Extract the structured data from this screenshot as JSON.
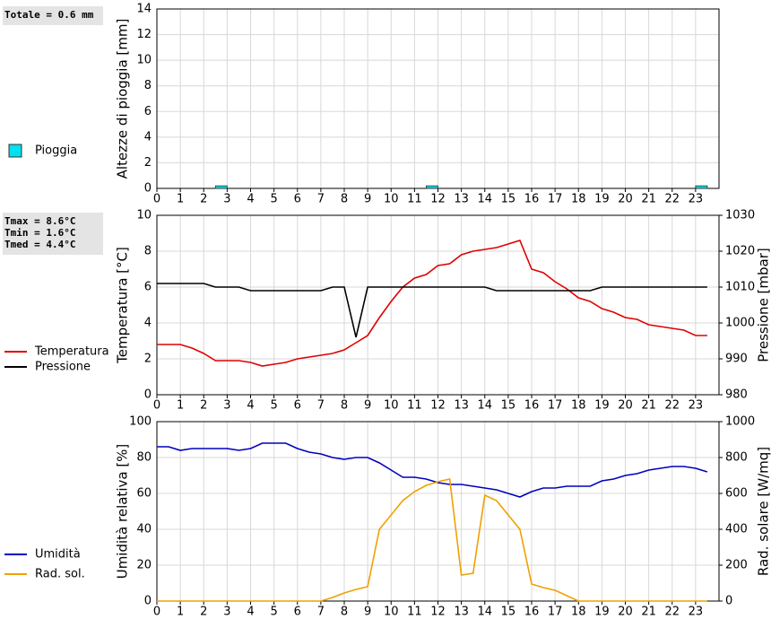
{
  "chart_data": [
    {
      "type": "bar",
      "ylabel": "Altezze di pioggia [mm]",
      "annotations": [
        "Totale = 0.6 mm"
      ],
      "x": [
        2.75,
        11.75,
        23.25
      ],
      "series": [
        {
          "name": "Pioggia",
          "color": "#00e0ee",
          "values": [
            0.2,
            0.2,
            0.2
          ]
        }
      ],
      "xlim": [
        0,
        24
      ],
      "xticks": [
        0,
        1,
        2,
        3,
        4,
        5,
        6,
        7,
        8,
        9,
        10,
        11,
        12,
        13,
        14,
        15,
        16,
        17,
        18,
        19,
        20,
        21,
        22,
        23
      ],
      "ylim": [
        0,
        14
      ],
      "yticks": [
        0,
        2,
        4,
        6,
        8,
        10,
        12,
        14
      ],
      "grid": true
    },
    {
      "type": "line",
      "ylabel": "Temperatura [°C]",
      "y2label": "Pressione [mbar]",
      "annotations": [
        "Tmax =  8.6°C",
        "Tmin =  1.6°C",
        "Tmed =  4.4°C"
      ],
      "x": [
        0,
        0.5,
        1,
        1.5,
        2,
        2.5,
        3,
        3.5,
        4,
        4.5,
        5,
        5.5,
        6,
        6.5,
        7,
        7.5,
        8,
        8.5,
        9,
        9.5,
        10,
        10.5,
        11,
        11.5,
        12,
        12.5,
        13,
        13.5,
        14,
        14.5,
        15,
        15.5,
        16,
        16.5,
        17,
        17.5,
        18,
        18.5,
        19,
        19.5,
        20,
        20.5,
        21,
        21.5,
        22,
        22.5,
        23,
        23.5
      ],
      "series": [
        {
          "name": "Temperatura",
          "color": "#e00000",
          "values": [
            2.8,
            2.8,
            2.8,
            2.6,
            2.3,
            1.9,
            1.9,
            1.9,
            1.8,
            1.6,
            1.7,
            1.8,
            2.0,
            2.1,
            2.2,
            2.3,
            2.5,
            2.9,
            3.3,
            4.3,
            5.2,
            6.0,
            6.5,
            6.7,
            7.2,
            7.3,
            7.8,
            8.0,
            8.1,
            8.2,
            8.4,
            8.6,
            7.0,
            6.8,
            6.3,
            5.9,
            5.4,
            5.2,
            4.8,
            4.6,
            4.3,
            4.2,
            3.9,
            3.8,
            3.7,
            3.6,
            3.3,
            3.3
          ]
        },
        {
          "name": "Pressione",
          "color": "#000000",
          "axis": "y2",
          "values": [
            1011,
            1011,
            1011,
            1011,
            1011,
            1010,
            1010,
            1010,
            1009,
            1009,
            1009,
            1009,
            1009,
            1009,
            1009,
            1010,
            1010,
            996,
            1010,
            1010,
            1010,
            1010,
            1010,
            1010,
            1010,
            1010,
            1010,
            1010,
            1010,
            1009,
            1009,
            1009,
            1009,
            1009,
            1009,
            1009,
            1009,
            1009,
            1010,
            1010,
            1010,
            1010,
            1010,
            1010,
            1010,
            1010,
            1010,
            1010
          ]
        }
      ],
      "xlim": [
        0,
        24
      ],
      "xticks": [
        0,
        1,
        2,
        3,
        4,
        5,
        6,
        7,
        8,
        9,
        10,
        11,
        12,
        13,
        14,
        15,
        16,
        17,
        18,
        19,
        20,
        21,
        22,
        23
      ],
      "ylim": [
        0,
        10
      ],
      "yticks": [
        0,
        2,
        4,
        6,
        8,
        10
      ],
      "y2lim": [
        980,
        1030
      ],
      "y2ticks": [
        980,
        990,
        1000,
        1010,
        1020,
        1030
      ],
      "grid": true
    },
    {
      "type": "line",
      "ylabel": "Umidità relativa [%]",
      "y2label": "Rad. solare [W/mq]",
      "x": [
        0,
        0.5,
        1,
        1.5,
        2,
        2.5,
        3,
        3.5,
        4,
        4.5,
        5,
        5.5,
        6,
        6.5,
        7,
        7.5,
        8,
        8.5,
        9,
        9.5,
        10,
        10.5,
        11,
        11.5,
        12,
        12.5,
        13,
        13.5,
        14,
        14.5,
        15,
        15.5,
        16,
        16.5,
        17,
        17.5,
        18,
        18.5,
        19,
        19.5,
        20,
        20.5,
        21,
        21.5,
        22,
        22.5,
        23,
        23.5
      ],
      "series": [
        {
          "name": "Umidità",
          "color": "#0000c0",
          "values": [
            86,
            86,
            84,
            85,
            85,
            85,
            85,
            84,
            85,
            88,
            88,
            88,
            85,
            83,
            82,
            80,
            79,
            80,
            80,
            77,
            73,
            69,
            69,
            68,
            66,
            65,
            65,
            64,
            63,
            62,
            60,
            58,
            61,
            63,
            63,
            64,
            64,
            64,
            67,
            68,
            70,
            71,
            73,
            74,
            75,
            75,
            74,
            72
          ]
        },
        {
          "name": "Rad. sol.",
          "color": "#f0a000",
          "axis": "y2",
          "values": [
            0,
            0,
            0,
            0,
            0,
            0,
            0,
            0,
            0,
            0,
            0,
            0,
            0,
            0,
            0,
            20,
            45,
            65,
            80,
            400,
            480,
            560,
            610,
            645,
            665,
            680,
            145,
            155,
            590,
            560,
            480,
            400,
            95,
            75,
            60,
            30,
            0,
            0,
            0,
            0,
            0,
            0,
            0,
            0,
            0,
            0,
            0,
            0
          ]
        }
      ],
      "xlim": [
        0,
        24
      ],
      "xticks": [
        0,
        1,
        2,
        3,
        4,
        5,
        6,
        7,
        8,
        9,
        10,
        11,
        12,
        13,
        14,
        15,
        16,
        17,
        18,
        19,
        20,
        21,
        22,
        23
      ],
      "ylim": [
        0,
        100
      ],
      "yticks": [
        0,
        20,
        40,
        60,
        80,
        100
      ],
      "y2lim": [
        0,
        1000
      ],
      "y2ticks": [
        0,
        200,
        400,
        600,
        800,
        1000
      ],
      "grid": true
    }
  ]
}
